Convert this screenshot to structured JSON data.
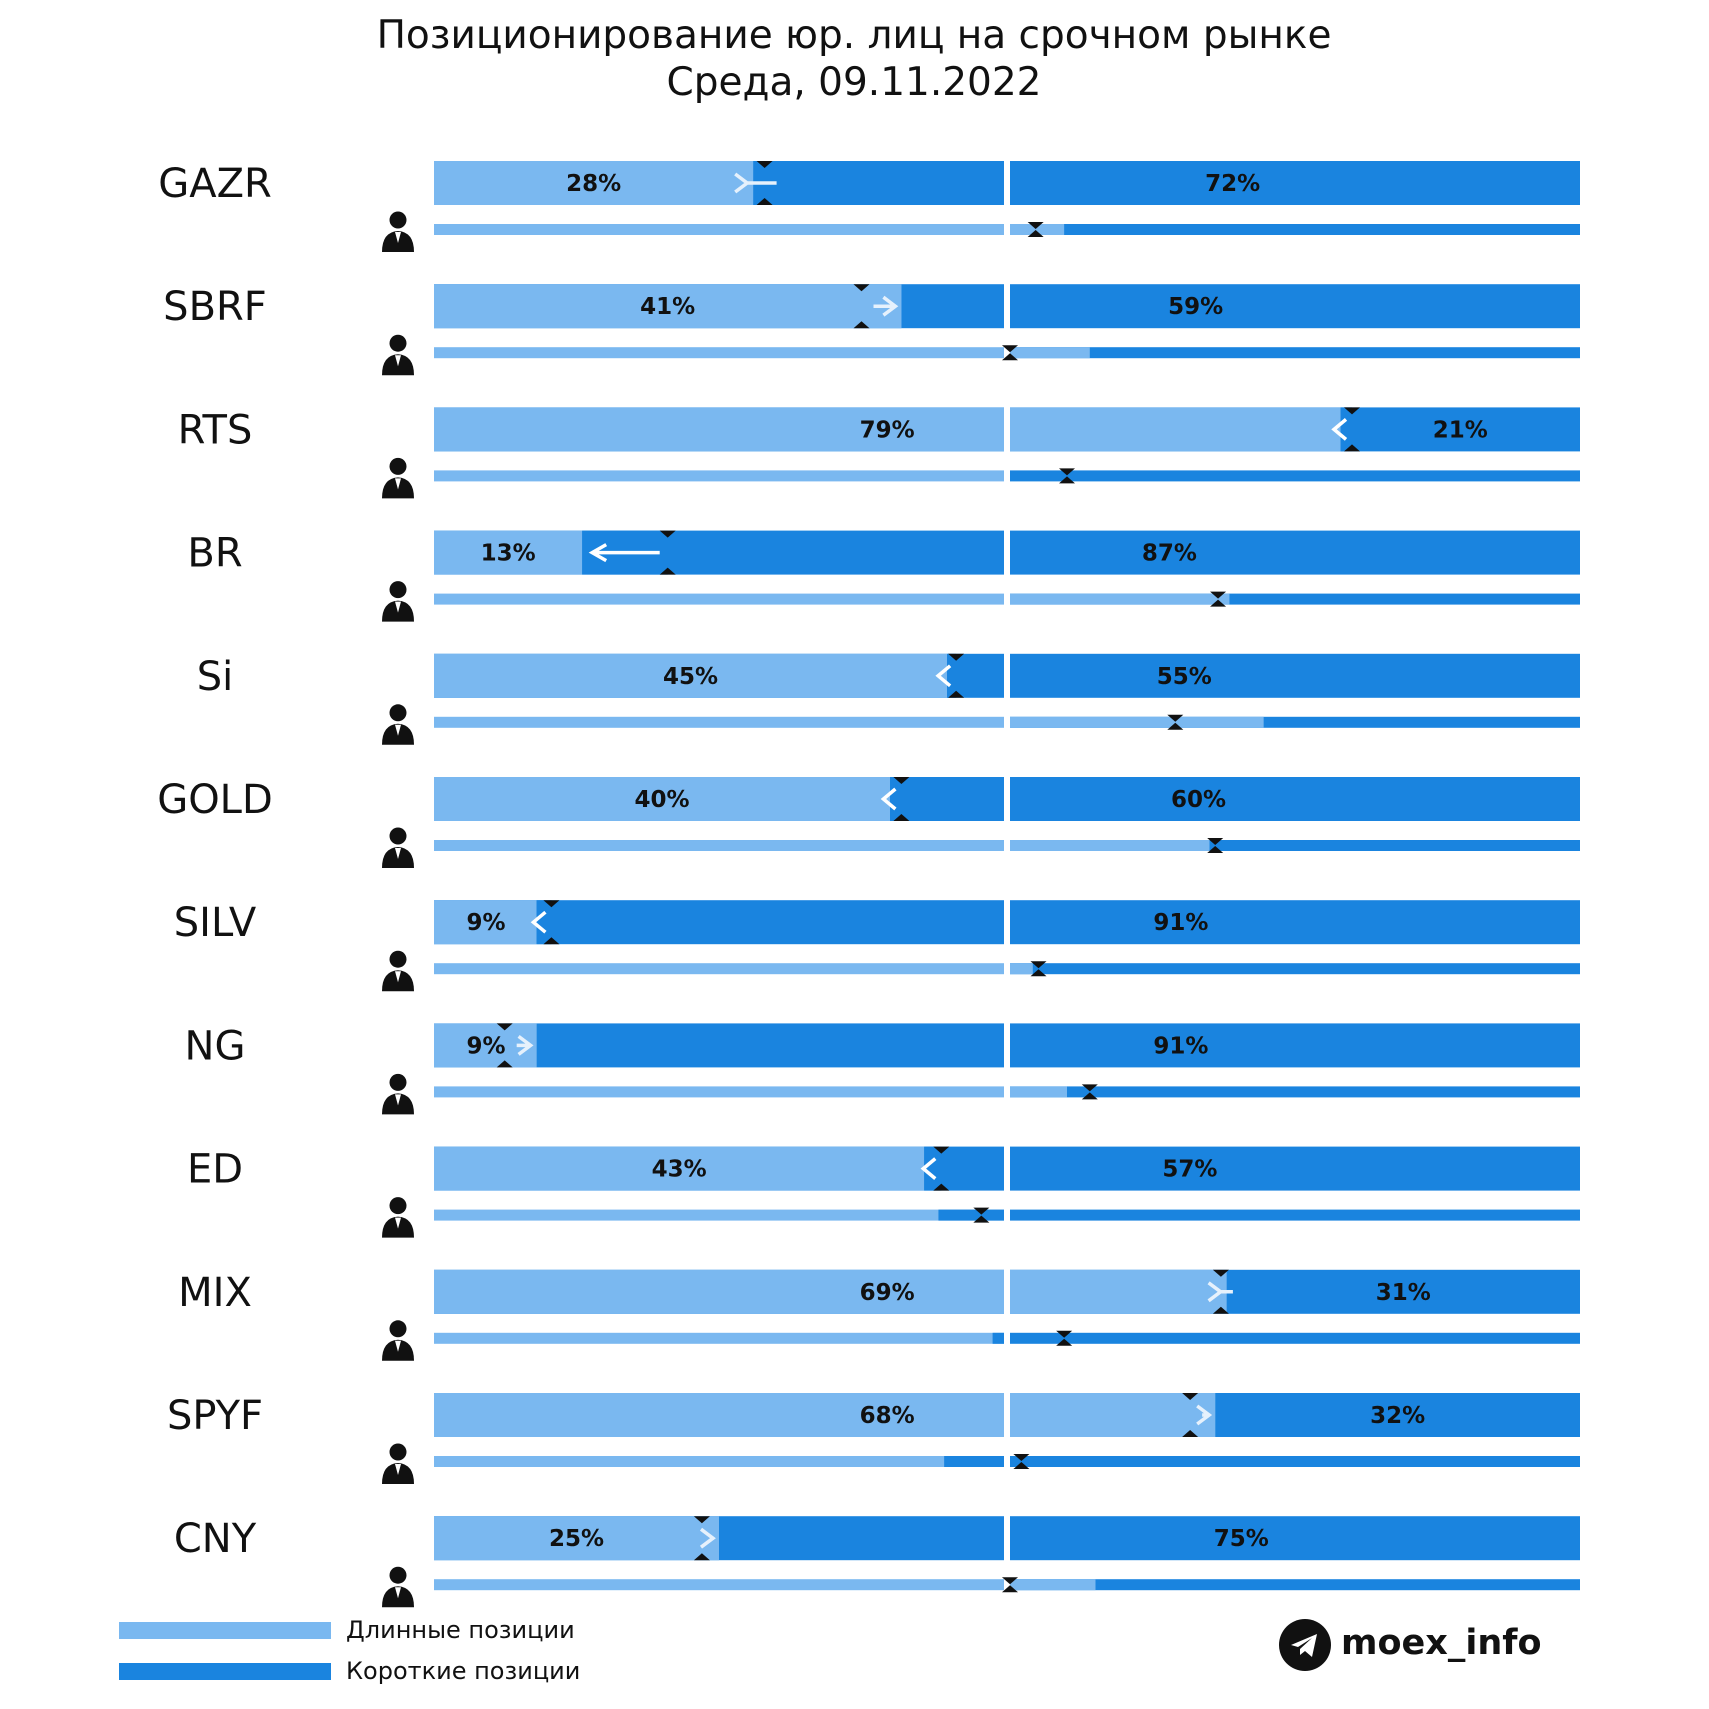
{
  "chart_data": {
    "type": "bar",
    "title": "Позиционирование юр. лиц на срочном рынке",
    "subtitle": "Среда, 09.11.2022",
    "colors": {
      "long": "#7ab8f0",
      "short": "#1a84df"
    },
    "rows": [
      {
        "ticker": "GAZR",
        "long_pct": 28,
        "short_pct": 72,
        "long_label": "28%",
        "short_label": "72%",
        "arrow_dir": "right",
        "arrow_from": 0.29,
        "sub_pct": 0.5,
        "sub_marker": 0.045,
        "sub_left_dark": 0,
        "sub_right_light": 0.095
      },
      {
        "ticker": "SBRF",
        "long_pct": 41,
        "short_pct": 59,
        "long_label": "41%",
        "short_label": "59%",
        "arrow_dir": "right",
        "arrow_from": 0.375,
        "sub_pct": 0.5,
        "sub_marker": 0.0,
        "sub_left_dark": 0,
        "sub_right_light": 0.14
      },
      {
        "ticker": "RTS",
        "long_pct": 79,
        "short_pct": 21,
        "long_label": "79%",
        "short_label": "21%",
        "arrow_dir": "left",
        "arrow_from": 0.8,
        "sub_pct": 0.5,
        "sub_marker": 0.1,
        "sub_left_dark": 0,
        "sub_right_light": 0.0
      },
      {
        "ticker": "BR",
        "long_pct": 13,
        "short_pct": 87,
        "long_label": "13%",
        "short_label": "87%",
        "arrow_dir": "left",
        "arrow_from": 0.205,
        "sub_pct": 0.5,
        "sub_marker": 0.365,
        "sub_left_dark": 0,
        "sub_right_light": 0.385
      },
      {
        "ticker": "Si",
        "long_pct": 45,
        "short_pct": 55,
        "long_label": "45%",
        "short_label": "55%",
        "arrow_dir": "left",
        "arrow_from": 0.458,
        "sub_pct": 0.5,
        "sub_marker": 0.29,
        "sub_left_dark": 0,
        "sub_right_light": 0.445
      },
      {
        "ticker": "GOLD",
        "long_pct": 40,
        "short_pct": 60,
        "long_label": "40%",
        "short_label": "60%",
        "arrow_dir": "left",
        "arrow_from": 0.41,
        "sub_pct": 0.5,
        "sub_marker": 0.36,
        "sub_left_dark": 0,
        "sub_right_light": 0.35
      },
      {
        "ticker": "SILV",
        "long_pct": 9,
        "short_pct": 91,
        "long_label": "9%",
        "short_label": "91%",
        "arrow_dir": "left",
        "arrow_from": 0.103,
        "sub_pct": 0.5,
        "sub_marker": 0.05,
        "sub_left_dark": 0,
        "sub_right_light": 0.04
      },
      {
        "ticker": "NG",
        "long_pct": 9,
        "short_pct": 91,
        "long_label": "9%",
        "short_label": "91%",
        "arrow_dir": "right",
        "arrow_from": 0.062,
        "sub_pct": 0.5,
        "sub_marker": 0.14,
        "sub_left_dark": 0,
        "sub_right_light": 0.1
      },
      {
        "ticker": "ED",
        "long_pct": 43,
        "short_pct": 57,
        "long_label": "43%",
        "short_label": "57%",
        "arrow_dir": "left",
        "arrow_from": 0.445,
        "sub_pct": 0.5,
        "sub_marker": -0.045,
        "sub_left_dark": 0.115,
        "sub_right_light": 0
      },
      {
        "ticker": "MIX",
        "long_pct": 69,
        "short_pct": 31,
        "long_label": "69%",
        "short_label": "31%",
        "arrow_dir": "right",
        "arrow_from": 0.685,
        "sub_pct": 0.5,
        "sub_marker": 0.095,
        "sub_left_dark": 0.02,
        "sub_right_light": 0
      },
      {
        "ticker": "SPYF",
        "long_pct": 68,
        "short_pct": 32,
        "long_label": "68%",
        "short_label": "32%",
        "arrow_dir": "right",
        "arrow_from": 0.658,
        "sub_pct": 0.5,
        "sub_marker": 0.02,
        "sub_left_dark": 0.105,
        "sub_right_light": 0
      },
      {
        "ticker": "CNY",
        "long_pct": 25,
        "short_pct": 75,
        "long_label": "25%",
        "short_label": "75%",
        "arrow_dir": "right",
        "arrow_from": 0.235,
        "sub_pct": 0.5,
        "sub_marker": 0.0,
        "sub_left_dark": 0,
        "sub_right_light": 0.15
      }
    ],
    "legend": [
      {
        "label": "Длинные позиции",
        "color": "#7ab8f0"
      },
      {
        "label": "Короткие позиции",
        "color": "#1a84df"
      }
    ]
  },
  "brand": {
    "name": "moex_info",
    "icon": "telegram-icon"
  }
}
